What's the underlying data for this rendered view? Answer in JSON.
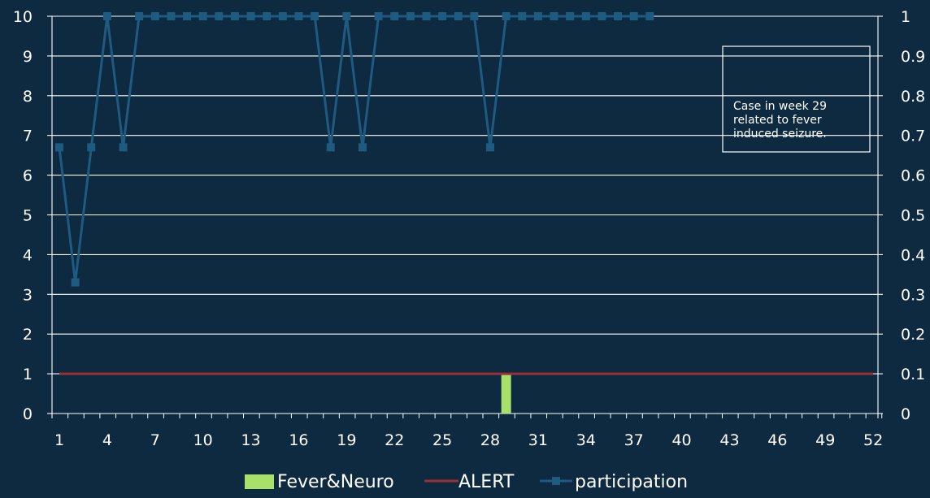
{
  "colors": {
    "background": "#0e2a40",
    "gridline": "#ffffff",
    "bar": "#a8e06a",
    "alert": "#9b2f35",
    "participation": "#1f5a80",
    "text": "#ffffff"
  },
  "chart_data": {
    "type": "bar",
    "title": "",
    "xlabel": "",
    "ylabel": "",
    "x": [
      1,
      2,
      3,
      4,
      5,
      6,
      7,
      8,
      9,
      10,
      11,
      12,
      13,
      14,
      15,
      16,
      17,
      18,
      19,
      20,
      21,
      22,
      23,
      24,
      25,
      26,
      27,
      28,
      29,
      30,
      31,
      32,
      33,
      34,
      35,
      36,
      37,
      38,
      39,
      40,
      41,
      42,
      43,
      44,
      45,
      46,
      47,
      48,
      49,
      50,
      51,
      52
    ],
    "x_tick_labels": [
      "1",
      "4",
      "7",
      "10",
      "13",
      "16",
      "19",
      "22",
      "25",
      "28",
      "31",
      "34",
      "37",
      "40",
      "43",
      "46",
      "49",
      "52"
    ],
    "ylim_left": [
      0,
      10
    ],
    "y_ticks_left": [
      "0",
      "1",
      "2",
      "3",
      "4",
      "5",
      "6",
      "7",
      "8",
      "9",
      "10"
    ],
    "ylim_right": [
      0,
      1
    ],
    "y_ticks_right": [
      "0",
      "0.1",
      "0.2",
      "0.3",
      "0.4",
      "0.5",
      "0.6",
      "0.7",
      "0.8",
      "0.9",
      "1"
    ],
    "grid": true,
    "legend_position": "bottom",
    "series": [
      {
        "name": "Fever&Neuro",
        "type": "bar",
        "axis": "left",
        "points": [
          {
            "x": 29,
            "y": 1
          }
        ]
      },
      {
        "name": "ALERT",
        "type": "line",
        "axis": "left",
        "x_range": [
          1,
          52
        ],
        "value": 1
      },
      {
        "name": "participation",
        "type": "line-marker",
        "axis": "right",
        "x": [
          1,
          2,
          3,
          4,
          5,
          6,
          7,
          8,
          9,
          10,
          11,
          12,
          13,
          14,
          15,
          16,
          17,
          18,
          19,
          20,
          21,
          22,
          23,
          24,
          25,
          26,
          27,
          28,
          29,
          30,
          31,
          32,
          33,
          34,
          35,
          36,
          37,
          38
        ],
        "values": [
          0.67,
          0.33,
          0.67,
          1,
          0.67,
          1,
          1,
          1,
          1,
          1,
          1,
          1,
          1,
          1,
          1,
          1,
          1,
          0.67,
          1,
          0.67,
          1,
          1,
          1,
          1,
          1,
          1,
          1,
          0.67,
          1,
          1,
          1,
          1,
          1,
          1,
          1,
          1,
          1,
          1
        ]
      }
    ],
    "annotation": {
      "lines": [
        "Case in week 29",
        "related to fever",
        "induced seizure."
      ]
    }
  }
}
